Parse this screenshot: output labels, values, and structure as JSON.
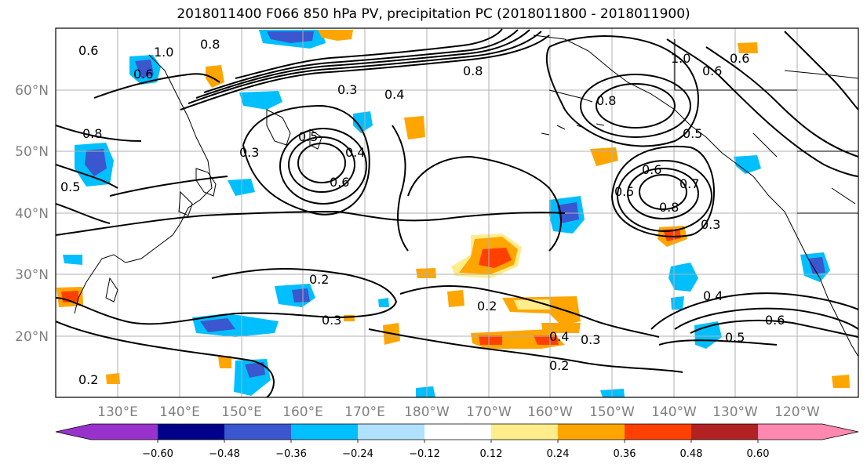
{
  "title": "2018011400 F066 850 hPa PV, precipitation PC (2018011800 - 2018011900)",
  "map": {
    "lat_labels": [
      "60°N",
      "50°N",
      "40°N",
      "30°N",
      "20°N"
    ],
    "lon_labels": [
      "130°E",
      "140°E",
      "150°E",
      "160°E",
      "170°E",
      "180°W",
      "170°W",
      "160°W",
      "150°W",
      "140°W",
      "130°W",
      "120°W"
    ],
    "contour_labels": [
      "0.2",
      "0.3",
      "0.2",
      "0.3",
      "0.2",
      "0.4",
      "0.4",
      "0.3",
      "0.5",
      "0.6",
      "0.5",
      "0.6",
      "0.7",
      "0.8",
      "0.3",
      "0.5",
      "0.4",
      "0.6",
      "0.3",
      "0.5",
      "0.8",
      "1.0",
      "0.6",
      "0.6",
      "0.8",
      "1.0",
      "0.6",
      "0.8",
      "0.5",
      "0.8",
      "0.6",
      "0.4",
      "0.2"
    ]
  },
  "colorbar": {
    "tick_labels": [
      "−0.60",
      "−0.48",
      "−0.36",
      "−0.24",
      "−0.12",
      "0.12",
      "0.24",
      "0.36",
      "0.48",
      "0.60"
    ],
    "colors": [
      "#9932cc",
      "#00008b",
      "#3a57cf",
      "#00bfff",
      "#b0e2ff",
      "#ffffff",
      "#ffec8b",
      "#ffa500",
      "#ff4000",
      "#b22222",
      "#ff88b0"
    ]
  },
  "colors": {
    "gridline": "#b0b0b0",
    "contour": "#000000",
    "coast": "#000000"
  }
}
